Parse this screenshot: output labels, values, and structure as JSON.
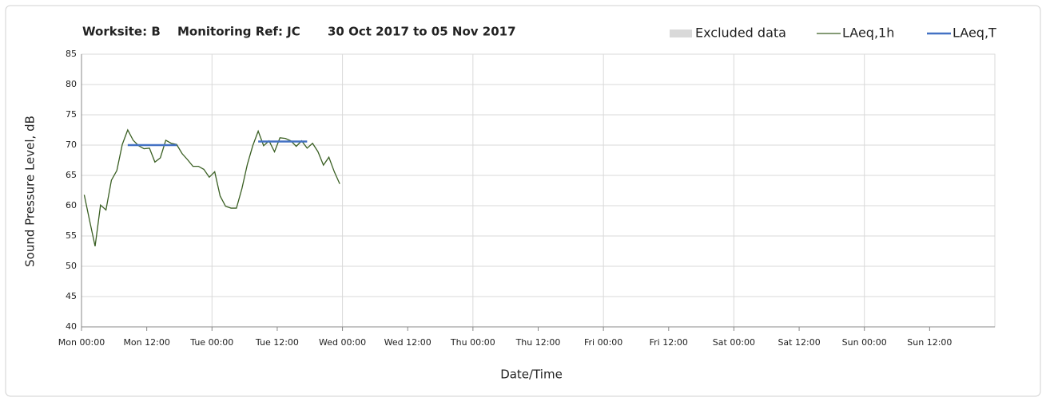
{
  "chart_data": {
    "type": "line",
    "title": [
      "Worksite: B",
      "Monitoring Ref: JC",
      "30 Oct 2017 to 05 Nov 2017"
    ],
    "x_label": "Date/Time",
    "y_label": "Sound Pressure Level, dB",
    "xlim": [
      0,
      168
    ],
    "ylim": [
      40,
      85
    ],
    "yticks": [
      40,
      45,
      50,
      55,
      60,
      65,
      70,
      75,
      80,
      85
    ],
    "xticks": [
      {
        "value": 0,
        "label": "Mon 00:00"
      },
      {
        "value": 12,
        "label": "Mon 12:00"
      },
      {
        "value": 24,
        "label": "Tue 00:00"
      },
      {
        "value": 36,
        "label": "Tue 12:00"
      },
      {
        "value": 48,
        "label": "Wed 00:00"
      },
      {
        "value": 60,
        "label": "Wed 12:00"
      },
      {
        "value": 72,
        "label": "Thu 00:00"
      },
      {
        "value": 84,
        "label": "Thu 12:00"
      },
      {
        "value": 96,
        "label": "Fri 00:00"
      },
      {
        "value": 108,
        "label": "Fri 12:00"
      },
      {
        "value": 120,
        "label": "Sat 00:00"
      },
      {
        "value": 132,
        "label": "Sat 12:00"
      },
      {
        "value": 144,
        "label": "Sun 00:00"
      },
      {
        "value": 156,
        "label": "Sun 12:00"
      }
    ],
    "xgrid": [
      24,
      48,
      72,
      96,
      120,
      144
    ],
    "grid": true,
    "legend": "top-right",
    "series": [
      {
        "name": "Excluded data",
        "color": "#d9d9d9",
        "kind": "area",
        "x": [],
        "values": []
      },
      {
        "name": "LAeq,1h",
        "color": "#3a5f23",
        "kind": "line",
        "x": [
          0.5,
          1.5,
          2.5,
          3.5,
          4.5,
          5.5,
          6.5,
          7.5,
          8.5,
          9.5,
          10.5,
          11.5,
          12.5,
          13.5,
          14.5,
          15.5,
          16.5,
          17.5,
          18.5,
          19.5,
          20.5,
          21.5,
          22.5,
          23.5,
          24.5,
          25.5,
          26.5,
          27.5,
          28.5,
          29.5,
          30.5,
          31.5,
          32.5,
          33.5,
          34.5,
          35.5,
          36.5,
          37.5,
          38.5,
          39.5,
          40.5,
          41.5,
          42.5,
          43.5,
          44.5,
          45.5,
          46.5,
          47.5
        ],
        "values": [
          61.8,
          57.5,
          53.3,
          60.1,
          59.3,
          64.2,
          65.8,
          70.1,
          72.5,
          70.8,
          69.9,
          69.4,
          69.5,
          67.2,
          67.9,
          70.8,
          70.3,
          70.1,
          68.6,
          67.6,
          66.5,
          66.5,
          66.0,
          64.7,
          65.6,
          61.6,
          59.9,
          59.6,
          59.6,
          62.8,
          66.8,
          69.9,
          72.3,
          69.9,
          70.7,
          68.9,
          71.2,
          71.1,
          70.7,
          69.8,
          70.7,
          69.5,
          70.3,
          68.9,
          66.7,
          68.0,
          65.6,
          63.6
        ]
      },
      {
        "name": "LAeq,T",
        "color": "#4472c4",
        "kind": "line",
        "x": [
          8.5,
          17.5,
          25,
          32.5,
          41.5
        ],
        "values": [
          70.0,
          70.0,
          null,
          70.6,
          70.6
        ]
      }
    ]
  }
}
